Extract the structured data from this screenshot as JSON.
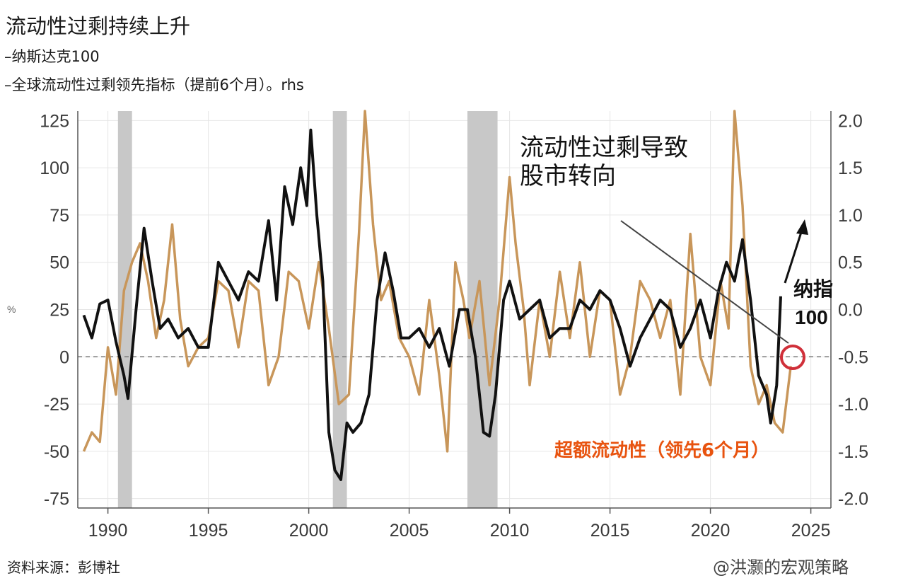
{
  "title": "流动性过剩持续上升",
  "legend": [
    "–纳斯达克100",
    "–全球流动性过剩领先指标（提前6个月）。rhs"
  ],
  "source": "资料来源：彭博社",
  "watermark": "@洪灏的宏观策略",
  "left_unit": "%",
  "annotations": {
    "arrow_text_1": "流动性过剩导致",
    "arrow_text_2": "股市转向",
    "nasdaq_label_1": "纳指",
    "nasdaq_label_2": "100",
    "liquidity_label": "超额流动性（领先6个月）"
  },
  "colors": {
    "nasdaq": "#111111",
    "liquidity": "#c8965a",
    "recession": "#c8c8c8",
    "liquidity_label": "#e8530f",
    "circle": "#d0303a"
  },
  "chart_data": {
    "type": "line",
    "x_range": [
      1988.5,
      2026
    ],
    "x_ticks": [
      1990,
      1995,
      2000,
      2005,
      2010,
      2015,
      2020,
      2025
    ],
    "y_left_range": [
      -80,
      130
    ],
    "y_left_ticks": [
      125,
      100,
      75,
      50,
      25,
      0,
      -25,
      -50,
      -75
    ],
    "y_right_range": [
      -2.1,
      2.1
    ],
    "y_right_ticks": [
      2.0,
      1.5,
      1.0,
      0.5,
      0.0,
      -0.5,
      -1.0,
      -1.5,
      -2.0
    ],
    "recessions": [
      [
        1990.5,
        1991.2
      ],
      [
        2001.2,
        2001.9
      ],
      [
        2007.9,
        2009.4
      ]
    ],
    "reference_line_left_y": 0,
    "series": [
      {
        "name": "纳斯达克100",
        "axis": "left",
        "x": [
          1988.8,
          1989.2,
          1989.6,
          1990.0,
          1990.4,
          1990.8,
          1991.0,
          1991.4,
          1991.8,
          1992.2,
          1992.6,
          1993.0,
          1993.5,
          1994.0,
          1994.5,
          1995.0,
          1995.5,
          1996.0,
          1996.5,
          1997.0,
          1997.5,
          1998.0,
          1998.4,
          1998.8,
          1999.2,
          1999.6,
          1999.9,
          2000.1,
          2000.4,
          2000.7,
          2001.0,
          2001.3,
          2001.6,
          2001.9,
          2002.2,
          2002.6,
          2003.0,
          2003.4,
          2003.8,
          2004.2,
          2004.6,
          2005.0,
          2005.5,
          2006.0,
          2006.5,
          2007.0,
          2007.5,
          2007.9,
          2008.3,
          2008.7,
          2009.0,
          2009.3,
          2009.7,
          2010.0,
          2010.5,
          2011.0,
          2011.5,
          2012.0,
          2012.5,
          2013.0,
          2013.5,
          2014.0,
          2014.5,
          2015.0,
          2015.5,
          2016.0,
          2016.5,
          2017.0,
          2017.5,
          2018.0,
          2018.5,
          2019.0,
          2019.5,
          2020.0,
          2020.4,
          2020.8,
          2021.2,
          2021.6,
          2022.0,
          2022.4,
          2022.8,
          2023.0,
          2023.3,
          2023.5
        ],
        "values": [
          22,
          10,
          28,
          30,
          8,
          -10,
          -22,
          25,
          68,
          40,
          15,
          20,
          10,
          15,
          5,
          5,
          50,
          40,
          30,
          45,
          40,
          72,
          30,
          90,
          70,
          100,
          80,
          120,
          75,
          40,
          -40,
          -60,
          -65,
          -35,
          -40,
          -35,
          -20,
          30,
          55,
          35,
          10,
          10,
          15,
          5,
          15,
          -5,
          25,
          25,
          0,
          -40,
          -42,
          -20,
          30,
          40,
          20,
          25,
          30,
          10,
          15,
          15,
          30,
          25,
          35,
          30,
          15,
          -5,
          10,
          20,
          30,
          25,
          5,
          15,
          30,
          10,
          35,
          50,
          40,
          62,
          30,
          -10,
          -20,
          -35,
          -15,
          32
        ]
      },
      {
        "name": "全球流动性过剩领先指标（提前6个月）",
        "axis": "right",
        "x": [
          1988.8,
          1989.2,
          1989.6,
          1990.0,
          1990.4,
          1990.8,
          1991.2,
          1991.6,
          1992.0,
          1992.4,
          1992.8,
          1993.2,
          1993.6,
          1994.0,
          1994.5,
          1995.0,
          1995.5,
          1996.0,
          1996.5,
          1997.0,
          1997.5,
          1998.0,
          1998.5,
          1999.0,
          1999.5,
          2000.0,
          2000.5,
          2001.0,
          2001.5,
          2002.0,
          2002.5,
          2002.8,
          2003.2,
          2003.6,
          2004.0,
          2004.5,
          2005.0,
          2005.5,
          2006.0,
          2006.5,
          2006.9,
          2007.3,
          2007.7,
          2008.0,
          2008.5,
          2009.0,
          2009.5,
          2010.0,
          2010.3,
          2010.7,
          2011.0,
          2011.5,
          2012.0,
          2012.5,
          2013.0,
          2013.5,
          2014.0,
          2014.5,
          2015.0,
          2015.5,
          2016.0,
          2016.5,
          2017.0,
          2017.5,
          2018.0,
          2018.5,
          2019.0,
          2019.5,
          2020.0,
          2020.5,
          2020.9,
          2021.2,
          2021.6,
          2022.0,
          2022.4,
          2022.8,
          2023.2,
          2023.6,
          2024.0
        ],
        "values": [
          -1.5,
          -1.3,
          -1.4,
          -0.4,
          -0.9,
          0.2,
          0.5,
          0.7,
          0.3,
          -0.3,
          0.1,
          0.9,
          -0.1,
          -0.6,
          -0.4,
          -0.3,
          0.3,
          0.2,
          -0.4,
          0.3,
          0.2,
          -0.8,
          -0.5,
          0.4,
          0.3,
          -0.2,
          0.5,
          -0.2,
          -1.0,
          -0.9,
          0.8,
          2.1,
          0.9,
          0.1,
          0.3,
          -0.3,
          -0.5,
          -0.9,
          0.1,
          -0.7,
          -1.5,
          0.5,
          0.1,
          -0.3,
          0.3,
          -0.8,
          0.1,
          1.4,
          0.7,
          0.0,
          -0.8,
          0.1,
          -0.5,
          0.4,
          -0.3,
          0.5,
          -0.5,
          0.2,
          0.1,
          -0.9,
          -0.5,
          0.3,
          0.1,
          -0.3,
          0.1,
          -0.9,
          0.8,
          -0.5,
          -0.8,
          0.3,
          -0.2,
          2.1,
          1.1,
          -0.6,
          -1.0,
          -0.8,
          -1.2,
          -1.3,
          -0.6
        ]
      }
    ]
  }
}
